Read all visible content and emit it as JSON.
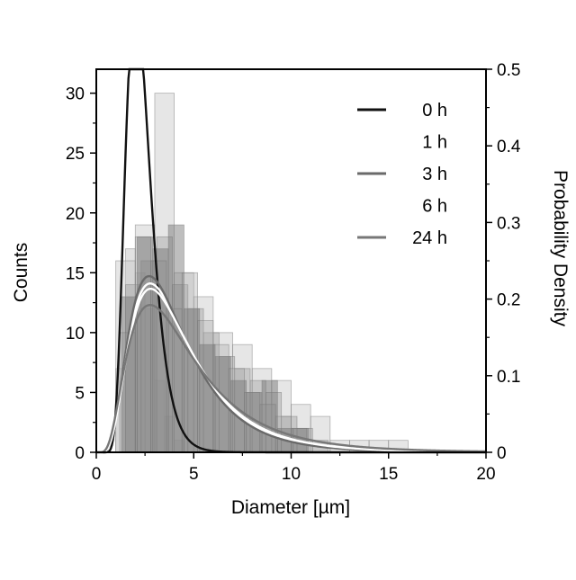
{
  "chart_data": {
    "type": "histogram",
    "xlabel": "Diameter [µm]",
    "ylabel_left": "Counts",
    "ylabel_right": "Probability Density",
    "xlim": [
      0,
      20
    ],
    "ylim_left": [
      0,
      32
    ],
    "ylim_right": [
      0,
      0.5
    ],
    "x_ticks": [
      0,
      5,
      10,
      15,
      20
    ],
    "y_left_ticks": [
      0,
      5,
      10,
      15,
      20,
      25,
      30
    ],
    "y_right_ticks": [
      0,
      0.1,
      0.2,
      0.3,
      0.4,
      0.5
    ],
    "grid": false,
    "legend_position": "top-right",
    "series": [
      {
        "name": "0 h",
        "line_color": "#111111",
        "bar_fill": "#8a8a8a",
        "bar_opacity": 0.25,
        "fit": {
          "mu": 0.8,
          "sigma": 0.32
        },
        "bins": [
          {
            "x0": 1.0,
            "x1": 1.5,
            "count": 7
          },
          {
            "x0": 1.5,
            "x1": 2.0,
            "count": 17
          },
          {
            "x0": 2.0,
            "x1": 2.5,
            "count": 15
          },
          {
            "x0": 2.5,
            "x1": 3.0,
            "count": 12
          },
          {
            "x0": 3.0,
            "x1": 3.5,
            "count": 6
          },
          {
            "x0": 3.5,
            "x1": 4.0,
            "count": 3
          },
          {
            "x0": 4.0,
            "x1": 4.5,
            "count": 1
          }
        ]
      },
      {
        "name": "1 h",
        "line_color": "#ffffff",
        "bar_fill": "#c8c8c8",
        "bar_opacity": 0.45,
        "fit": {
          "mu": 1.33,
          "sigma": 0.56
        },
        "bins": [
          {
            "x0": 1.0,
            "x1": 2.0,
            "count": 16
          },
          {
            "x0": 2.0,
            "x1": 3.0,
            "count": 19
          },
          {
            "x0": 3.0,
            "x1": 4.0,
            "count": 30
          },
          {
            "x0": 4.0,
            "x1": 5.0,
            "count": 15
          },
          {
            "x0": 5.0,
            "x1": 6.0,
            "count": 13
          },
          {
            "x0": 6.0,
            "x1": 7.0,
            "count": 10
          },
          {
            "x0": 7.0,
            "x1": 8.0,
            "count": 9
          },
          {
            "x0": 8.0,
            "x1": 9.0,
            "count": 7
          },
          {
            "x0": 9.0,
            "x1": 10.0,
            "count": 6
          },
          {
            "x0": 10.0,
            "x1": 11.0,
            "count": 4
          },
          {
            "x0": 11.0,
            "x1": 12.0,
            "count": 3
          },
          {
            "x0": 12.0,
            "x1": 13.0,
            "count": 1
          },
          {
            "x0": 13.0,
            "x1": 14.0,
            "count": 1
          },
          {
            "x0": 14.0,
            "x1": 15.0,
            "count": 1
          },
          {
            "x0": 15.0,
            "x1": 16.0,
            "count": 1
          }
        ]
      },
      {
        "name": "3 h",
        "line_color": "#6a6a6a",
        "bar_fill": "#9a9a9a",
        "bar_opacity": 0.4,
        "fit": {
          "mu": 1.3,
          "sigma": 0.55
        },
        "bins": [
          {
            "x0": 1.5,
            "x1": 2.3,
            "count": 14
          },
          {
            "x0": 2.3,
            "x1": 3.1,
            "count": 16
          },
          {
            "x0": 3.1,
            "x1": 3.9,
            "count": 18
          },
          {
            "x0": 3.9,
            "x1": 4.7,
            "count": 14
          },
          {
            "x0": 4.7,
            "x1": 5.5,
            "count": 12
          },
          {
            "x0": 5.5,
            "x1": 6.3,
            "count": 10
          },
          {
            "x0": 6.3,
            "x1": 7.1,
            "count": 8
          },
          {
            "x0": 7.1,
            "x1": 7.9,
            "count": 7
          },
          {
            "x0": 7.9,
            "x1": 8.7,
            "count": 6
          },
          {
            "x0": 8.7,
            "x1": 9.5,
            "count": 5
          },
          {
            "x0": 9.5,
            "x1": 10.3,
            "count": 3
          },
          {
            "x0": 10.3,
            "x1": 11.1,
            "count": 2
          },
          {
            "x0": 11.1,
            "x1": 11.9,
            "count": 1
          }
        ]
      },
      {
        "name": "6 h",
        "line_color": "#ffffff",
        "bar_fill": "#aaaaaa",
        "bar_opacity": 0.35,
        "fit": {
          "mu": 1.35,
          "sigma": 0.57
        },
        "bins": [
          {
            "x0": 1.2,
            "x1": 2.0,
            "count": 10
          },
          {
            "x0": 2.0,
            "x1": 2.8,
            "count": 18
          },
          {
            "x0": 2.8,
            "x1": 3.6,
            "count": 16
          },
          {
            "x0": 3.6,
            "x1": 4.4,
            "count": 12
          },
          {
            "x0": 4.4,
            "x1": 5.2,
            "count": 15
          },
          {
            "x0": 5.2,
            "x1": 6.0,
            "count": 11
          },
          {
            "x0": 6.0,
            "x1": 6.8,
            "count": 9
          },
          {
            "x0": 6.8,
            "x1": 7.6,
            "count": 7
          },
          {
            "x0": 7.6,
            "x1": 8.4,
            "count": 5
          },
          {
            "x0": 8.4,
            "x1": 9.2,
            "count": 4
          },
          {
            "x0": 9.2,
            "x1": 10.0,
            "count": 3
          },
          {
            "x0": 10.0,
            "x1": 10.8,
            "count": 2
          }
        ]
      },
      {
        "name": "24 h",
        "line_color": "#777777",
        "bar_fill": "#6e6e6e",
        "bar_opacity": 0.45,
        "fit": {
          "mu": 1.4,
          "sigma": 0.62
        },
        "bins": [
          {
            "x0": 1.3,
            "x1": 2.1,
            "count": 13
          },
          {
            "x0": 2.1,
            "x1": 2.9,
            "count": 18
          },
          {
            "x0": 2.9,
            "x1": 3.7,
            "count": 17
          },
          {
            "x0": 3.7,
            "x1": 4.5,
            "count": 19
          },
          {
            "x0": 4.5,
            "x1": 5.3,
            "count": 12
          },
          {
            "x0": 5.3,
            "x1": 6.1,
            "count": 9
          },
          {
            "x0": 6.1,
            "x1": 6.9,
            "count": 8
          },
          {
            "x0": 6.9,
            "x1": 7.7,
            "count": 6
          },
          {
            "x0": 7.7,
            "x1": 8.5,
            "count": 5
          },
          {
            "x0": 8.5,
            "x1": 9.3,
            "count": 6
          },
          {
            "x0": 9.3,
            "x1": 10.1,
            "count": 2
          },
          {
            "x0": 10.1,
            "x1": 10.9,
            "count": 2
          }
        ]
      }
    ]
  }
}
